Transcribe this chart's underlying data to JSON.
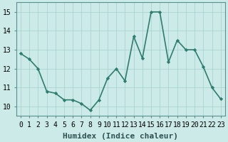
{
  "x": [
    0,
    1,
    2,
    3,
    4,
    5,
    6,
    7,
    8,
    9,
    10,
    11,
    12,
    13,
    14,
    15,
    16,
    17,
    18,
    19,
    20,
    21,
    22,
    23
  ],
  "y": [
    12.8,
    12.5,
    12.0,
    10.8,
    10.7,
    10.35,
    10.35,
    10.15,
    9.8,
    10.35,
    11.5,
    12.0,
    11.35,
    13.7,
    12.55,
    15.0,
    15.0,
    12.35,
    13.5,
    13.0,
    13.0,
    12.1,
    11.0,
    10.4
  ],
  "line_color": "#2e7d6e",
  "marker": "D",
  "marker_size": 2.2,
  "bg_color": "#cceae8",
  "grid_color": "#aad4d0",
  "xlabel": "Humidex (Indice chaleur)",
  "ylim": [
    9.5,
    15.5
  ],
  "xlim": [
    -0.5,
    23.5
  ],
  "yticks": [
    10,
    11,
    12,
    13,
    14,
    15
  ],
  "xtick_labels": [
    "0",
    "1",
    "2",
    "3",
    "4",
    "5",
    "6",
    "7",
    "8",
    "9",
    "10",
    "11",
    "12",
    "13",
    "14",
    "15",
    "16",
    "17",
    "18",
    "19",
    "20",
    "21",
    "22",
    "23"
  ],
  "xlabel_fontsize": 8,
  "tick_fontsize": 7,
  "line_width": 1.2,
  "spine_color": "#5a9090"
}
